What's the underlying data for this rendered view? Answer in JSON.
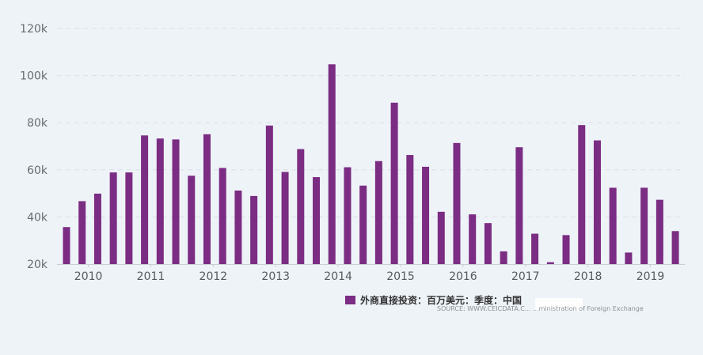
{
  "chart_data": {
    "type": "bar",
    "ylim": [
      20000,
      120000
    ],
    "y_ticks": [
      {
        "value": 20000,
        "label": "20k"
      },
      {
        "value": 40000,
        "label": "40k"
      },
      {
        "value": 60000,
        "label": "60k"
      },
      {
        "value": 80000,
        "label": "80k"
      },
      {
        "value": 100000,
        "label": "100k"
      },
      {
        "value": 120000,
        "label": "120k"
      }
    ],
    "x_year_labels": [
      "2010",
      "2011",
      "2012",
      "2013",
      "2014",
      "2015",
      "2016",
      "2017",
      "2018",
      "2019"
    ],
    "categories": [
      "2010Q1",
      "2010Q2",
      "2010Q3",
      "2010Q4",
      "2011Q1",
      "2011Q2",
      "2011Q3",
      "2011Q4",
      "2012Q1",
      "2012Q2",
      "2012Q3",
      "2012Q4",
      "2013Q1",
      "2013Q2",
      "2013Q3",
      "2013Q4",
      "2014Q1",
      "2014Q2",
      "2014Q3",
      "2014Q4",
      "2015Q1",
      "2015Q2",
      "2015Q3",
      "2015Q4",
      "2016Q1",
      "2016Q2",
      "2016Q3",
      "2016Q4",
      "2017Q1",
      "2017Q2",
      "2017Q3",
      "2017Q4",
      "2018Q1",
      "2018Q2",
      "2018Q3",
      "2018Q4",
      "2019Q1",
      "2019Q2",
      "2019Q3",
      "2019Q4"
    ],
    "series": [
      {
        "name": "外商直接投资：百万美元：季度：中国",
        "color": "#7b2c83",
        "values": [
          35700,
          46700,
          49900,
          58900,
          58900,
          74600,
          73300,
          72900,
          57500,
          75100,
          60800,
          51200,
          48900,
          78800,
          59100,
          68800,
          56900,
          104800,
          61100,
          53300,
          63700,
          88500,
          66300,
          61300,
          42200,
          71400,
          41100,
          37400,
          25400,
          69600,
          32900,
          20800,
          32300,
          79000,
          72500,
          52400,
          24900,
          52400,
          47300,
          34000
        ]
      }
    ],
    "grid": true,
    "legend_position": "bottom-right",
    "source": "SOURCE: WWW.CEICDATA.C... ...ministration of Foreign Exchange"
  }
}
